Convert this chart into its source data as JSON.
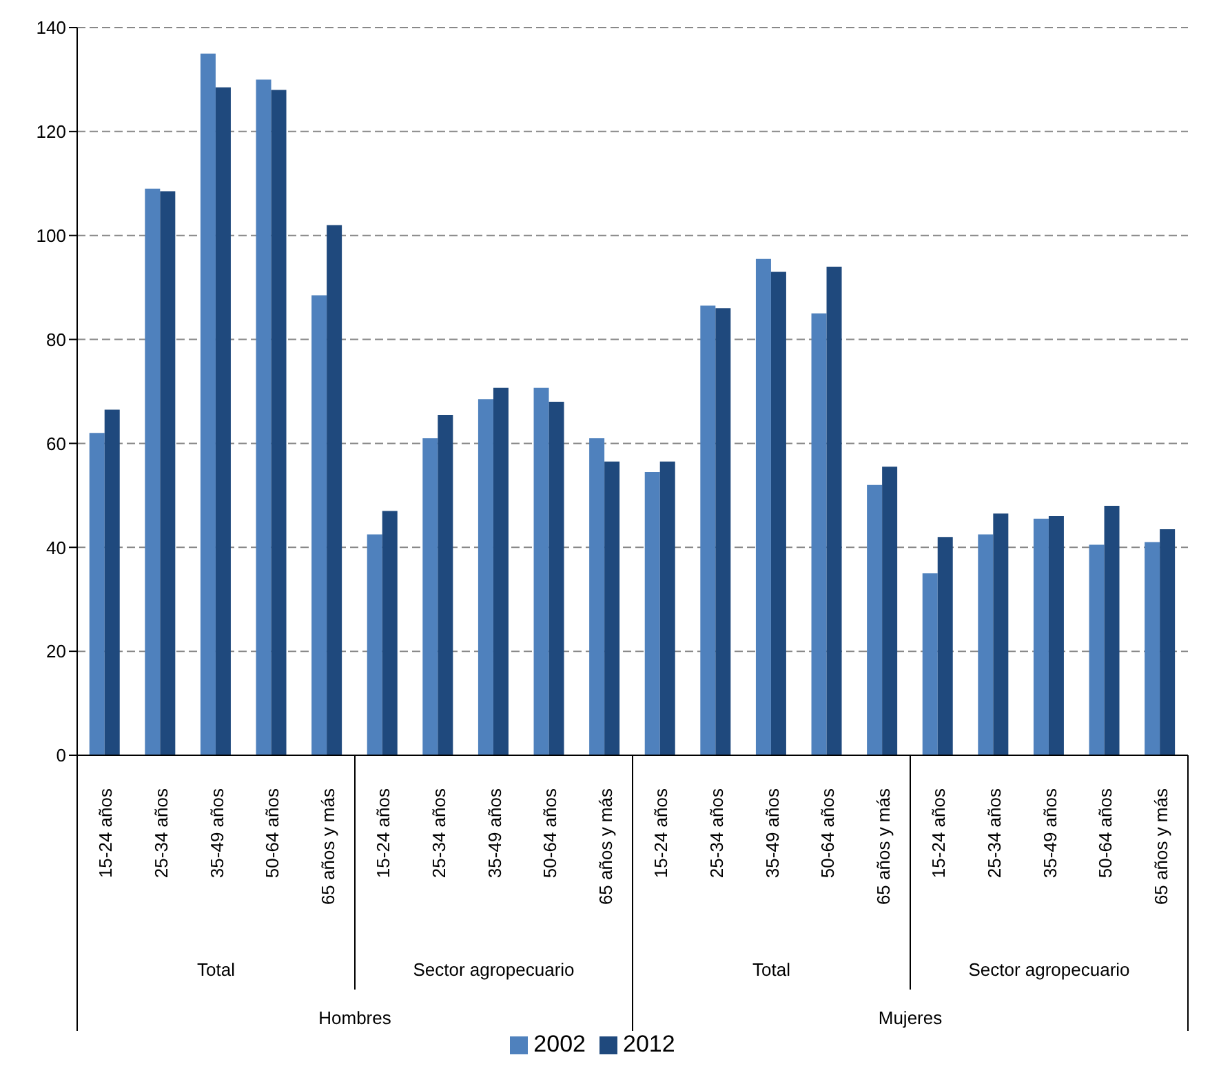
{
  "chart_data": {
    "type": "bar",
    "categories": [
      "15-24 años",
      "25-34 años",
      "35-49 años",
      "50-64 años",
      "65 años y más",
      "15-24 años",
      "25-34 años",
      "35-49 años",
      "50-64 años",
      "65 años y más",
      "15-24 años",
      "25-34 años",
      "35-49 años",
      "50-64 años",
      "65 años y más",
      "15-24 años",
      "25-34 años",
      "35-49 años",
      "50-64 años",
      "65 años y más"
    ],
    "series": [
      {
        "name": "2002",
        "color": "#4f81bd",
        "values": [
          62,
          109,
          135,
          130,
          88.5,
          42.5,
          61,
          68.5,
          70.7,
          61,
          54.5,
          86.5,
          95.5,
          85,
          52,
          35,
          42.5,
          45.5,
          40.5,
          41
        ]
      },
      {
        "name": "2012",
        "color": "#1f497d",
        "values": [
          66.5,
          108.5,
          128.5,
          128,
          102,
          47,
          65.5,
          70.7,
          68,
          56.5,
          56.5,
          86,
          93,
          94,
          55.5,
          42,
          46.5,
          46,
          48,
          43.5
        ]
      }
    ],
    "annotations": [
      "Total",
      "Sector agropecuario",
      "Total",
      "Sector agropecuario",
      "Hombres",
      "Mujeres"
    ],
    "ylim": [
      0,
      140
    ],
    "yticks": [
      0,
      20,
      40,
      60,
      80,
      100,
      120,
      140
    ],
    "grid": "y",
    "legend": "bottom"
  }
}
